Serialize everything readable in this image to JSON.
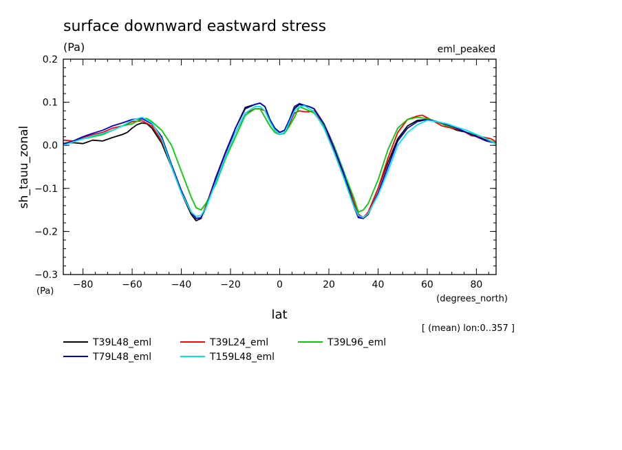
{
  "chart_data": {
    "type": "line",
    "title": "surface downward eastward stress",
    "units_label": "(Pa)",
    "experiment_label": "eml_peaked",
    "xlabel": "lat",
    "xunits": "(degrees_north)",
    "ylabel": "sh_tauu_zonal",
    "yunits": "(Pa)",
    "mean_note": "[ (mean) lon:0..357 ]",
    "xlim": [
      -88,
      88
    ],
    "ylim": [
      -0.3,
      0.2
    ],
    "x_ticks": [
      -80,
      -60,
      -40,
      -20,
      0,
      20,
      40,
      60,
      80
    ],
    "x_tick_labels": [
      "−80",
      "−60",
      "−40",
      "−20",
      "0",
      "20",
      "40",
      "60",
      "80"
    ],
    "y_ticks": [
      -0.3,
      -0.2,
      -0.1,
      0.0,
      0.1,
      0.2
    ],
    "y_tick_labels": [
      "−0.3",
      "−0.2",
      "−0.1",
      "0.0",
      "0.1",
      "0.2"
    ],
    "grid": false,
    "legend_position": "bottom-left",
    "series": [
      {
        "name": "T39L48_eml",
        "color": "#000000",
        "points": [
          [
            -88,
            0.005
          ],
          [
            -84,
            0.006
          ],
          [
            -80,
            0.004
          ],
          [
            -76,
            0.012
          ],
          [
            -72,
            0.01
          ],
          [
            -68,
            0.018
          ],
          [
            -64,
            0.025
          ],
          [
            -62,
            0.03
          ],
          [
            -60,
            0.04
          ],
          [
            -58,
            0.048
          ],
          [
            -56,
            0.052
          ],
          [
            -54,
            0.05
          ],
          [
            -52,
            0.04
          ],
          [
            -48,
            0.005
          ],
          [
            -44,
            -0.05
          ],
          [
            -40,
            -0.11
          ],
          [
            -36,
            -0.16
          ],
          [
            -34,
            -0.175
          ],
          [
            -32,
            -0.17
          ],
          [
            -30,
            -0.14
          ],
          [
            -26,
            -0.08
          ],
          [
            -22,
            -0.02
          ],
          [
            -18,
            0.04
          ],
          [
            -14,
            0.088
          ],
          [
            -10,
            0.095
          ],
          [
            -8,
            0.098
          ],
          [
            -6,
            0.09
          ],
          [
            -4,
            0.06
          ],
          [
            -2,
            0.04
          ],
          [
            0,
            0.03
          ],
          [
            2,
            0.035
          ],
          [
            4,
            0.06
          ],
          [
            6,
            0.085
          ],
          [
            8,
            0.095
          ],
          [
            10,
            0.092
          ],
          [
            12,
            0.09
          ],
          [
            14,
            0.085
          ],
          [
            18,
            0.05
          ],
          [
            22,
            0.0
          ],
          [
            26,
            -0.06
          ],
          [
            30,
            -0.13
          ],
          [
            32,
            -0.165
          ],
          [
            34,
            -0.17
          ],
          [
            36,
            -0.155
          ],
          [
            40,
            -0.1
          ],
          [
            44,
            -0.04
          ],
          [
            48,
            0.015
          ],
          [
            52,
            0.045
          ],
          [
            56,
            0.058
          ],
          [
            60,
            0.06
          ],
          [
            64,
            0.055
          ],
          [
            68,
            0.045
          ],
          [
            72,
            0.035
          ],
          [
            76,
            0.03
          ],
          [
            80,
            0.022
          ],
          [
            84,
            0.012
          ],
          [
            88,
            0.005
          ]
        ]
      },
      {
        "name": "T39L24_eml",
        "color": "#ff0000",
        "points": [
          [
            -88,
            0.012
          ],
          [
            -84,
            0.01
          ],
          [
            -80,
            0.018
          ],
          [
            -76,
            0.025
          ],
          [
            -72,
            0.03
          ],
          [
            -68,
            0.04
          ],
          [
            -64,
            0.045
          ],
          [
            -60,
            0.055
          ],
          [
            -56,
            0.057
          ],
          [
            -52,
            0.045
          ],
          [
            -48,
            0.01
          ],
          [
            -44,
            -0.045
          ],
          [
            -40,
            -0.105
          ],
          [
            -36,
            -0.155
          ],
          [
            -34,
            -0.17
          ],
          [
            -32,
            -0.168
          ],
          [
            -30,
            -0.14
          ],
          [
            -26,
            -0.075
          ],
          [
            -22,
            -0.02
          ],
          [
            -18,
            0.03
          ],
          [
            -14,
            0.075
          ],
          [
            -10,
            0.085
          ],
          [
            -8,
            0.085
          ],
          [
            -6,
            0.08
          ],
          [
            -4,
            0.06
          ],
          [
            -2,
            0.035
          ],
          [
            0,
            0.025
          ],
          [
            2,
            0.03
          ],
          [
            4,
            0.05
          ],
          [
            6,
            0.075
          ],
          [
            8,
            0.08
          ],
          [
            10,
            0.078
          ],
          [
            12,
            0.078
          ],
          [
            14,
            0.08
          ],
          [
            18,
            0.045
          ],
          [
            22,
            -0.01
          ],
          [
            26,
            -0.07
          ],
          [
            30,
            -0.13
          ],
          [
            32,
            -0.16
          ],
          [
            34,
            -0.168
          ],
          [
            36,
            -0.155
          ],
          [
            40,
            -0.1
          ],
          [
            44,
            -0.03
          ],
          [
            48,
            0.03
          ],
          [
            52,
            0.06
          ],
          [
            56,
            0.068
          ],
          [
            58,
            0.07
          ],
          [
            62,
            0.058
          ],
          [
            66,
            0.045
          ],
          [
            70,
            0.04
          ],
          [
            74,
            0.035
          ],
          [
            78,
            0.022
          ],
          [
            82,
            0.02
          ],
          [
            86,
            0.015
          ],
          [
            88,
            0.008
          ]
        ]
      },
      {
        "name": "T39L96_eml",
        "color": "#00cc00",
        "points": [
          [
            -88,
            0.005
          ],
          [
            -84,
            0.008
          ],
          [
            -80,
            0.015
          ],
          [
            -76,
            0.02
          ],
          [
            -72,
            0.025
          ],
          [
            -68,
            0.035
          ],
          [
            -64,
            0.045
          ],
          [
            -60,
            0.05
          ],
          [
            -56,
            0.062
          ],
          [
            -54,
            0.062
          ],
          [
            -52,
            0.055
          ],
          [
            -48,
            0.035
          ],
          [
            -44,
            0.0
          ],
          [
            -40,
            -0.06
          ],
          [
            -36,
            -0.12
          ],
          [
            -34,
            -0.145
          ],
          [
            -32,
            -0.15
          ],
          [
            -30,
            -0.135
          ],
          [
            -26,
            -0.09
          ],
          [
            -22,
            -0.03
          ],
          [
            -18,
            0.02
          ],
          [
            -14,
            0.07
          ],
          [
            -10,
            0.085
          ],
          [
            -8,
            0.085
          ],
          [
            -6,
            0.065
          ],
          [
            -4,
            0.045
          ],
          [
            -2,
            0.03
          ],
          [
            0,
            0.025
          ],
          [
            2,
            0.028
          ],
          [
            4,
            0.045
          ],
          [
            6,
            0.065
          ],
          [
            8,
            0.09
          ],
          [
            10,
            0.085
          ],
          [
            12,
            0.08
          ],
          [
            14,
            0.075
          ],
          [
            18,
            0.045
          ],
          [
            22,
            0.0
          ],
          [
            26,
            -0.06
          ],
          [
            30,
            -0.12
          ],
          [
            32,
            -0.155
          ],
          [
            34,
            -0.15
          ],
          [
            36,
            -0.135
          ],
          [
            40,
            -0.08
          ],
          [
            44,
            -0.01
          ],
          [
            48,
            0.04
          ],
          [
            52,
            0.06
          ],
          [
            56,
            0.065
          ],
          [
            60,
            0.062
          ],
          [
            64,
            0.055
          ],
          [
            68,
            0.045
          ],
          [
            72,
            0.04
          ],
          [
            76,
            0.03
          ],
          [
            80,
            0.025
          ],
          [
            84,
            0.015
          ],
          [
            88,
            0.005
          ]
        ]
      },
      {
        "name": "T79L48_eml",
        "color": "#0000cc",
        "points": [
          [
            -88,
            0.003
          ],
          [
            -84,
            0.01
          ],
          [
            -80,
            0.02
          ],
          [
            -76,
            0.028
          ],
          [
            -72,
            0.035
          ],
          [
            -68,
            0.045
          ],
          [
            -64,
            0.052
          ],
          [
            -60,
            0.06
          ],
          [
            -56,
            0.062
          ],
          [
            -52,
            0.05
          ],
          [
            -48,
            0.02
          ],
          [
            -44,
            -0.045
          ],
          [
            -40,
            -0.105
          ],
          [
            -36,
            -0.155
          ],
          [
            -34,
            -0.17
          ],
          [
            -32,
            -0.168
          ],
          [
            -30,
            -0.145
          ],
          [
            -26,
            -0.075
          ],
          [
            -22,
            -0.015
          ],
          [
            -18,
            0.04
          ],
          [
            -14,
            0.085
          ],
          [
            -10,
            0.095
          ],
          [
            -8,
            0.098
          ],
          [
            -6,
            0.09
          ],
          [
            -4,
            0.06
          ],
          [
            -2,
            0.04
          ],
          [
            0,
            0.03
          ],
          [
            2,
            0.035
          ],
          [
            4,
            0.06
          ],
          [
            6,
            0.09
          ],
          [
            8,
            0.097
          ],
          [
            10,
            0.093
          ],
          [
            12,
            0.09
          ],
          [
            14,
            0.085
          ],
          [
            18,
            0.05
          ],
          [
            22,
            -0.005
          ],
          [
            26,
            -0.065
          ],
          [
            30,
            -0.14
          ],
          [
            32,
            -0.168
          ],
          [
            34,
            -0.17
          ],
          [
            36,
            -0.16
          ],
          [
            40,
            -0.11
          ],
          [
            44,
            -0.05
          ],
          [
            48,
            0.01
          ],
          [
            52,
            0.04
          ],
          [
            56,
            0.055
          ],
          [
            60,
            0.06
          ],
          [
            64,
            0.055
          ],
          [
            68,
            0.048
          ],
          [
            72,
            0.04
          ],
          [
            76,
            0.03
          ],
          [
            80,
            0.02
          ],
          [
            84,
            0.01
          ],
          [
            88,
            0.005
          ]
        ]
      },
      {
        "name": "T159L48_eml",
        "color": "#00e5ee",
        "points": [
          [
            -88,
            0.0
          ],
          [
            -84,
            0.008
          ],
          [
            -80,
            0.015
          ],
          [
            -76,
            0.022
          ],
          [
            -72,
            0.028
          ],
          [
            -68,
            0.035
          ],
          [
            -64,
            0.045
          ],
          [
            -60,
            0.058
          ],
          [
            -56,
            0.065
          ],
          [
            -52,
            0.052
          ],
          [
            -48,
            0.015
          ],
          [
            -44,
            -0.05
          ],
          [
            -40,
            -0.11
          ],
          [
            -36,
            -0.155
          ],
          [
            -34,
            -0.165
          ],
          [
            -32,
            -0.163
          ],
          [
            -30,
            -0.145
          ],
          [
            -26,
            -0.085
          ],
          [
            -22,
            -0.025
          ],
          [
            -18,
            0.03
          ],
          [
            -14,
            0.075
          ],
          [
            -10,
            0.09
          ],
          [
            -8,
            0.09
          ],
          [
            -6,
            0.08
          ],
          [
            -4,
            0.055
          ],
          [
            -2,
            0.035
          ],
          [
            0,
            0.025
          ],
          [
            2,
            0.03
          ],
          [
            4,
            0.055
          ],
          [
            6,
            0.08
          ],
          [
            8,
            0.09
          ],
          [
            10,
            0.092
          ],
          [
            12,
            0.085
          ],
          [
            14,
            0.078
          ],
          [
            18,
            0.04
          ],
          [
            22,
            -0.015
          ],
          [
            26,
            -0.075
          ],
          [
            30,
            -0.14
          ],
          [
            32,
            -0.163
          ],
          [
            34,
            -0.168
          ],
          [
            36,
            -0.158
          ],
          [
            40,
            -0.115
          ],
          [
            44,
            -0.06
          ],
          [
            48,
            0.0
          ],
          [
            52,
            0.03
          ],
          [
            56,
            0.048
          ],
          [
            60,
            0.058
          ],
          [
            64,
            0.055
          ],
          [
            68,
            0.05
          ],
          [
            72,
            0.042
          ],
          [
            76,
            0.035
          ],
          [
            80,
            0.025
          ],
          [
            84,
            0.015
          ],
          [
            88,
            0.003
          ]
        ]
      }
    ]
  }
}
